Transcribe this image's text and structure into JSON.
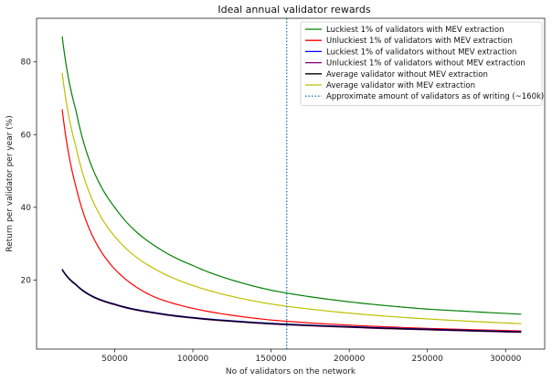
{
  "chart_data": {
    "type": "line",
    "title": "Ideal annual validator rewards",
    "xlabel": "No of validators on the network",
    "ylabel": "Return per validator per year (%)",
    "xlim": [
      0,
      325000
    ],
    "ylim": [
      1,
      92
    ],
    "xticks": [
      50000,
      100000,
      150000,
      200000,
      250000,
      300000
    ],
    "xtick_labels": [
      "50000",
      "100000",
      "150000",
      "200000",
      "250000",
      "300000"
    ],
    "yticks": [
      20,
      40,
      60,
      80
    ],
    "ytick_labels": [
      "20",
      "40",
      "60",
      "80"
    ],
    "grid": false,
    "legend_position": "top-right",
    "series": [
      {
        "name": "Luckiest 1% of validators with MEV extraction",
        "color": "#008000",
        "style": "solid",
        "x": [
          16384,
          25000,
          50000,
          75000,
          100000,
          125000,
          150000,
          175000,
          200000,
          225000,
          250000,
          275000,
          310000
        ],
        "y": [
          87.0,
          67.0,
          40.0,
          29.6,
          24.0,
          20.0,
          17.2,
          15.4,
          14.0,
          12.9,
          12.0,
          11.4,
          10.6
        ]
      },
      {
        "name": "Unluckiest 1% of validators with MEV extraction",
        "color": "#ff0000",
        "style": "solid",
        "x": [
          16384,
          25000,
          50000,
          75000,
          100000,
          125000,
          150000,
          175000,
          200000,
          225000,
          250000,
          275000,
          310000
        ],
        "y": [
          67.0,
          46.0,
          23.0,
          15.4,
          12.2,
          10.3,
          9.0,
          8.2,
          7.6,
          7.1,
          6.7,
          6.4,
          6.0
        ]
      },
      {
        "name": "Luckiest 1% of validators without MEV extraction",
        "color": "#0000ff",
        "style": "solid",
        "x": [
          16384,
          25000,
          50000,
          75000,
          100000,
          125000,
          150000,
          175000,
          200000,
          225000,
          250000,
          275000,
          310000
        ],
        "y": [
          23.0,
          18.9,
          13.4,
          11.1,
          9.7,
          8.8,
          8.1,
          7.6,
          7.2,
          6.8,
          6.5,
          6.2,
          5.8
        ]
      },
      {
        "name": "Unluckiest 1% of validators without MEV extraction",
        "color": "#800080",
        "style": "solid",
        "x": [
          16384,
          25000,
          50000,
          75000,
          100000,
          125000,
          150000,
          175000,
          200000,
          225000,
          250000,
          275000,
          310000
        ],
        "y": [
          22.8,
          18.7,
          13.2,
          10.9,
          9.5,
          8.6,
          7.9,
          7.4,
          7.0,
          6.6,
          6.3,
          6.0,
          5.6
        ]
      },
      {
        "name": "Average validator without MEV extraction",
        "color": "#000000",
        "style": "solid",
        "x": [
          16384,
          25000,
          50000,
          75000,
          100000,
          125000,
          150000,
          175000,
          200000,
          225000,
          250000,
          275000,
          310000
        ],
        "y": [
          22.9,
          18.8,
          13.3,
          11.0,
          9.6,
          8.7,
          8.0,
          7.5,
          7.1,
          6.7,
          6.4,
          6.1,
          5.7
        ]
      },
      {
        "name": "Average validator with MEV extraction",
        "color": "#bfbf00",
        "style": "solid",
        "x": [
          16384,
          25000,
          50000,
          75000,
          100000,
          125000,
          150000,
          175000,
          200000,
          225000,
          250000,
          275000,
          310000
        ],
        "y": [
          77.0,
          57.0,
          32.0,
          23.2,
          18.5,
          15.5,
          13.4,
          12.0,
          10.9,
          10.0,
          9.3,
          8.7,
          8.0
        ]
      },
      {
        "name": "Approximate amount of validators as of writing (~160k)",
        "color": "#1f77b4",
        "style": "dotted",
        "vline_x": 160000
      }
    ]
  }
}
